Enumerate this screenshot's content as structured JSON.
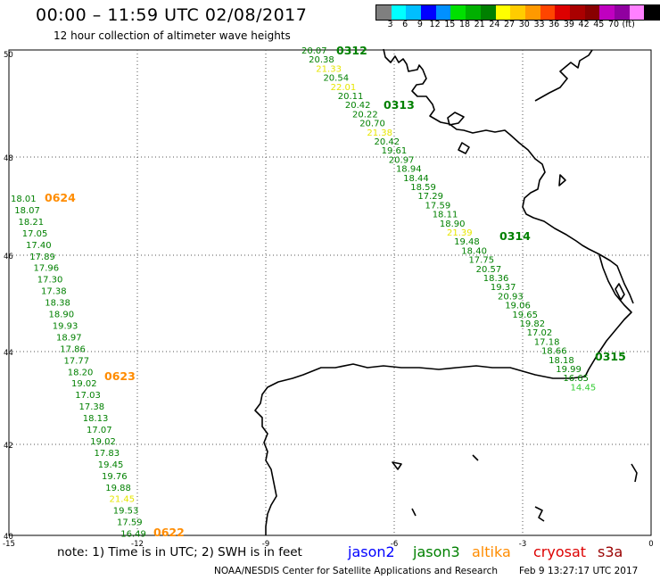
{
  "title": "00:00 – 11:59 UTC 02/08/2017",
  "subtitle": "12 hour collection of altimeter wave heights",
  "colorbar": {
    "colors": [
      "#7f7f7f",
      "#00ffff",
      "#00bfff",
      "#0000ff",
      "#0090ff",
      "#00e000",
      "#00b000",
      "#008000",
      "#ffff00",
      "#ffcc00",
      "#ff9900",
      "#ff4500",
      "#dd0000",
      "#aa0000",
      "#880000",
      "#c000c0",
      "#9000a0",
      "#ff80ff",
      "#000000"
    ],
    "labels": [
      "3",
      "6",
      "9",
      "12",
      "15",
      "18",
      "21",
      "24",
      "27",
      "30",
      "33",
      "36",
      "39",
      "42",
      "45",
      "70",
      "(ft)"
    ]
  },
  "axes": {
    "lat_labels": [
      "50",
      "48",
      "46",
      "44",
      "42",
      "40"
    ],
    "lon_labels": [
      "-15",
      "-12",
      "-9",
      "-6",
      "-3",
      "0"
    ]
  },
  "passes": [
    {
      "time": "0624",
      "color": "#ff8c00"
    },
    {
      "time": "0623",
      "color": "#ff8c00"
    },
    {
      "time": "0622",
      "color": "#ff8c00"
    },
    {
      "time": "0312",
      "color": "#008000"
    },
    {
      "time": "0313",
      "color": "#008000"
    },
    {
      "time": "0314",
      "color": "#008000"
    },
    {
      "time": "0315",
      "color": "#008000"
    }
  ],
  "track_west": [
    "18.01",
    "18.07",
    "18.21",
    "17.05",
    "17.40",
    "17.89",
    "17.96",
    "17.30",
    "17.38",
    "18.38",
    "18.90",
    "19.93",
    "18.97",
    "17.86",
    "17.77",
    "18.20",
    "19.02",
    "17.03",
    "17.38",
    "18.13",
    "17.07",
    "19.02",
    "17.83",
    "19.45",
    "19.76",
    "19.88",
    "21.45",
    "19.53",
    "17.59",
    "16.49"
  ],
  "track_east": [
    "20.07",
    "20.38",
    "21.33",
    "20.54",
    "22.01",
    "20.11",
    "20.42",
    "20.22",
    "20.70",
    "21.38",
    "20.42",
    "19.61",
    "20.97",
    "18.94",
    "18.44",
    "18.59",
    "17.29",
    "17.59",
    "18.11",
    "18.90",
    "21.39",
    "19.48",
    "18.40",
    "17.75",
    "20.57",
    "18.36",
    "19.37",
    "20.93",
    "19.06",
    "19.65",
    "19.82",
    "17.02",
    "17.18",
    "18.66",
    "18.18",
    "19.99",
    "16.65",
    "14.45"
  ],
  "value_colors": {
    "green": "#008000",
    "yellow": "#e6e600",
    "lightgreen": "#33cc33"
  },
  "note": "note: 1) Time is in UTC; 2) SWH is in feet",
  "missions": [
    {
      "name": "jason2",
      "color": "#0000ff"
    },
    {
      "name": "jason3",
      "color": "#008000"
    },
    {
      "name": "altika",
      "color": "#ff8c00"
    },
    {
      "name": "cryosat",
      "color": "#dd0000"
    },
    {
      "name": "s3a",
      "color": "#990000"
    }
  ],
  "credit": "NOAA/NESDIS Center for Satellite Applications and Research",
  "timestamp": "Feb  9 13:27:17 UTC 2017"
}
